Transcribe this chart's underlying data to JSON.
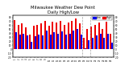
{
  "title": "Milwaukee Weather Dew Point",
  "subtitle": "Daily High/Low",
  "title_fontsize": 3.8,
  "background_color": "#ffffff",
  "bar_width": 0.42,
  "ylim": [
    -20,
    85
  ],
  "yticks": [
    -20,
    -10,
    0,
    10,
    20,
    30,
    40,
    50,
    60,
    70,
    80
  ],
  "legend_labels": [
    "Low",
    "High"
  ],
  "legend_colors": [
    "#0000ee",
    "#ee0000"
  ],
  "categories": [
    "1",
    "2",
    "3",
    "4",
    "5",
    "6",
    "7",
    "8",
    "9",
    "10",
    "11",
    "12",
    "13",
    "14",
    "15",
    "16",
    "17",
    "18",
    "19",
    "20",
    "21",
    "22",
    "23",
    "24",
    "25",
    "26"
  ],
  "high_values": [
    73,
    62,
    65,
    56,
    38,
    60,
    62,
    65,
    72,
    60,
    70,
    68,
    72,
    62,
    68,
    72,
    78,
    65,
    28,
    52,
    58,
    62,
    68,
    52,
    70,
    40
  ],
  "low_values": [
    44,
    38,
    40,
    36,
    18,
    33,
    38,
    36,
    48,
    38,
    43,
    40,
    46,
    38,
    40,
    48,
    52,
    38,
    3,
    22,
    28,
    36,
    40,
    28,
    40,
    16
  ],
  "dashed_vline_positions": [
    17.5,
    19.5
  ],
  "bar_color_high": "#ee0000",
  "bar_color_low": "#0000ee",
  "grid_color": "#cccccc"
}
